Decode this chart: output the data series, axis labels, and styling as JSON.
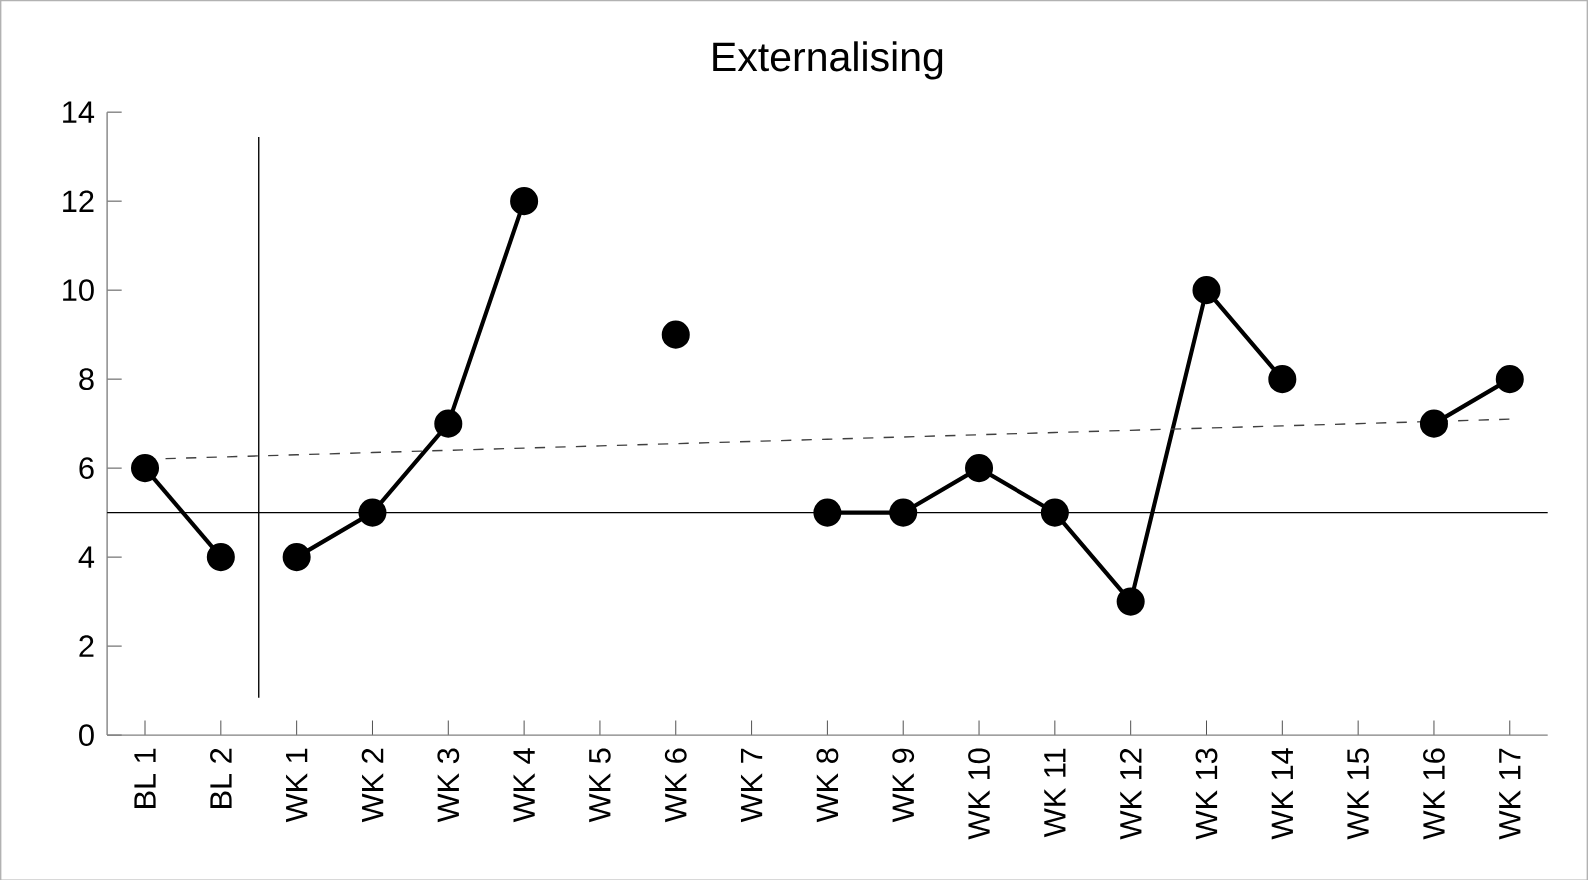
{
  "chart_data": {
    "type": "line",
    "title": "Externalising",
    "categories": [
      "BL 1",
      "BL 2",
      "WK 1",
      "WK 2",
      "WK 3",
      "WK 4",
      "WK 5",
      "WK 6",
      "WK 7",
      "WK 8",
      "WK 9",
      "WK 10",
      "WK 11",
      "WK 12",
      "WK 13",
      "WK 14",
      "WK 15",
      "WK 16",
      "WK 17"
    ],
    "series": [
      {
        "color": "#000000",
        "marker": "circle",
        "line_style": "solid",
        "values": [
          6,
          4,
          null,
          null,
          null,
          null,
          null,
          null,
          null,
          null,
          null,
          null,
          null,
          null,
          null,
          null,
          null,
          null,
          null
        ]
      },
      {
        "color": "#000000",
        "marker": "circle",
        "line_style": "solid",
        "values": [
          null,
          null,
          4,
          5,
          7,
          12,
          null,
          9,
          null,
          5,
          5,
          6,
          5,
          3,
          10,
          8,
          null,
          7,
          8
        ]
      },
      {
        "color": "#404040",
        "marker": "none",
        "line_style": "dashed",
        "values": [
          6.2,
          6.25,
          6.3,
          6.35,
          6.4,
          6.45,
          6.5,
          6.55,
          6.6,
          6.65,
          6.7,
          6.75,
          6.8,
          6.85,
          6.9,
          6.95,
          7.0,
          7.05,
          7.1
        ]
      }
    ],
    "ylim": [
      0,
      14
    ],
    "yticks": [
      0,
      2,
      4,
      6,
      8,
      10,
      12,
      14
    ],
    "grid": false,
    "ref_lines": [
      {
        "axis": "y",
        "value": 5,
        "color": "#000000"
      }
    ]
  }
}
